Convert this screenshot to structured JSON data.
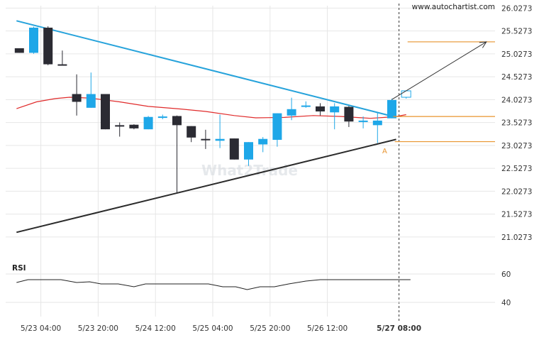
{
  "watermark_site": "www.autochartist.com",
  "watermark_brand": "What2Trade",
  "colors": {
    "background": "#ffffff",
    "grid": "#e6e6e6",
    "bull": "#1ea7e8",
    "bear": "#2b2b33",
    "resistance": "#27a3db",
    "support": "#2b2b2b",
    "ma": "#e02b2b",
    "level": "#e8942e",
    "projection": "#333333",
    "axis_text": "#333333",
    "rsi_line": "#222222"
  },
  "chart_data": {
    "type": "candlestick",
    "price_axis": {
      "ylim": [
        20.53,
        26.08
      ],
      "ticks": [
        "26.0273",
        "25.5273",
        "25.0273",
        "24.5273",
        "24.0273",
        "23.5273",
        "23.0273",
        "22.5273",
        "22.0273",
        "21.5273",
        "21.0273"
      ]
    },
    "time_axis": {
      "ticks": [
        {
          "label": "5/23 04:00",
          "bar": 1.5
        },
        {
          "label": "5/23 20:00",
          "bar": 5.5
        },
        {
          "label": "5/24 12:00",
          "bar": 9.5
        },
        {
          "label": "5/25 04:00",
          "bar": 13.5
        },
        {
          "label": "5/25 20:00",
          "bar": 17.5
        },
        {
          "label": "5/26 12:00",
          "bar": 21.5
        },
        {
          "label": "5/27 08:00",
          "bar": 26.5,
          "highlight": true
        }
      ]
    },
    "candles": [
      {
        "o": 25.15,
        "h": 25.15,
        "l": 25.05,
        "c": 25.05
      },
      {
        "o": 25.05,
        "h": 25.62,
        "l": 25.03,
        "c": 25.6
      },
      {
        "o": 25.6,
        "h": 25.63,
        "l": 24.78,
        "c": 24.8
      },
      {
        "o": 24.8,
        "h": 25.1,
        "l": 24.78,
        "c": 24.79
      },
      {
        "o": 24.15,
        "h": 24.58,
        "l": 23.68,
        "c": 23.98
      },
      {
        "o": 23.85,
        "h": 24.62,
        "l": 23.85,
        "c": 24.15
      },
      {
        "o": 24.15,
        "h": 24.15,
        "l": 23.38,
        "c": 23.38
      },
      {
        "o": 23.47,
        "h": 23.53,
        "l": 23.22,
        "c": 23.45
      },
      {
        "o": 23.48,
        "h": 23.49,
        "l": 23.38,
        "c": 23.4
      },
      {
        "o": 23.38,
        "h": 23.67,
        "l": 23.38,
        "c": 23.65
      },
      {
        "o": 23.65,
        "h": 23.7,
        "l": 23.6,
        "c": 23.66
      },
      {
        "o": 23.67,
        "h": 23.68,
        "l": 21.98,
        "c": 23.47
      },
      {
        "o": 23.45,
        "h": 23.45,
        "l": 23.1,
        "c": 23.2
      },
      {
        "o": 23.17,
        "h": 23.37,
        "l": 22.95,
        "c": 23.15
      },
      {
        "o": 23.13,
        "h": 23.7,
        "l": 22.97,
        "c": 23.17
      },
      {
        "o": 23.18,
        "h": 23.18,
        "l": 22.72,
        "c": 22.72
      },
      {
        "o": 22.72,
        "h": 23.1,
        "l": 22.58,
        "c": 23.1
      },
      {
        "o": 23.05,
        "h": 23.21,
        "l": 22.88,
        "c": 23.17
      },
      {
        "o": 23.15,
        "h": 23.73,
        "l": 23.0,
        "c": 23.73
      },
      {
        "o": 23.68,
        "h": 24.07,
        "l": 23.58,
        "c": 23.82
      },
      {
        "o": 23.88,
        "h": 23.99,
        "l": 23.85,
        "c": 23.9
      },
      {
        "o": 23.88,
        "h": 23.95,
        "l": 23.68,
        "c": 23.77
      },
      {
        "o": 23.75,
        "h": 23.95,
        "l": 23.38,
        "c": 23.88
      },
      {
        "o": 23.87,
        "h": 23.89,
        "l": 23.43,
        "c": 23.55
      },
      {
        "o": 23.57,
        "h": 23.66,
        "l": 23.4,
        "c": 23.57
      },
      {
        "o": 23.47,
        "h": 23.74,
        "l": 23.08,
        "c": 23.57
      },
      {
        "o": 23.62,
        "h": 24.05,
        "l": 23.62,
        "c": 24.02
      },
      {
        "o": 24.08,
        "h": 24.22,
        "l": 24.05,
        "c": 24.22,
        "hollow": true
      }
    ],
    "moving_average": [
      {
        "bar": -0.2,
        "y": 23.83
      },
      {
        "bar": 1.2,
        "y": 23.98
      },
      {
        "bar": 2.5,
        "y": 24.05
      },
      {
        "bar": 3.5,
        "y": 24.08
      },
      {
        "bar": 5.0,
        "y": 24.06
      },
      {
        "bar": 7.0,
        "y": 23.98
      },
      {
        "bar": 9.0,
        "y": 23.88
      },
      {
        "bar": 11.0,
        "y": 23.83
      },
      {
        "bar": 13.0,
        "y": 23.77
      },
      {
        "bar": 15.0,
        "y": 23.68
      },
      {
        "bar": 16.5,
        "y": 23.63
      },
      {
        "bar": 18.5,
        "y": 23.64
      },
      {
        "bar": 20.5,
        "y": 23.68
      },
      {
        "bar": 22.5,
        "y": 23.66
      },
      {
        "bar": 24.5,
        "y": 23.62
      },
      {
        "bar": 25.5,
        "y": 23.64
      },
      {
        "bar": 26.3,
        "y": 23.66
      },
      {
        "bar": 27.0,
        "y": 23.7
      }
    ],
    "resistance_line": {
      "from": {
        "bar": -0.2,
        "y": 25.75
      },
      "to": {
        "bar": 26.1,
        "y": 23.66
      }
    },
    "support_line": {
      "from": {
        "bar": -0.2,
        "y": 21.13
      },
      "to": {
        "bar": 26.3,
        "y": 23.16
      }
    },
    "horizontal_levels": [
      {
        "y": 23.66,
        "from_bar": 26.1,
        "to_bar": 37
      },
      {
        "y": 23.11,
        "from_bar": 26.2,
        "to_bar": 37
      },
      {
        "y": 25.29,
        "from_bar": 27.1,
        "to_bar": 37
      }
    ],
    "projection": {
      "from": {
        "bar": 26.0,
        "y": 24.03
      },
      "to": {
        "bar": 32.6,
        "y": 25.29
      }
    },
    "point_label": {
      "text": "A",
      "bar": 25.5,
      "y": 22.92
    },
    "rsi": {
      "label": "RSI",
      "ylim": [
        30,
        70
      ],
      "ticks": [
        "60",
        "40"
      ],
      "points": [
        {
          "bar": -0.2,
          "y": 54
        },
        {
          "bar": 0.6,
          "y": 56
        },
        {
          "bar": 2.9,
          "y": 56
        },
        {
          "bar": 4.0,
          "y": 54
        },
        {
          "bar": 4.9,
          "y": 54.5
        },
        {
          "bar": 5.7,
          "y": 53
        },
        {
          "bar": 6.9,
          "y": 53
        },
        {
          "bar": 8.0,
          "y": 51
        },
        {
          "bar": 8.8,
          "y": 53
        },
        {
          "bar": 13.2,
          "y": 53
        },
        {
          "bar": 14.2,
          "y": 51
        },
        {
          "bar": 15.1,
          "y": 51
        },
        {
          "bar": 15.9,
          "y": 49
        },
        {
          "bar": 16.8,
          "y": 51
        },
        {
          "bar": 17.8,
          "y": 51
        },
        {
          "bar": 18.8,
          "y": 53
        },
        {
          "bar": 20.0,
          "y": 55
        },
        {
          "bar": 21.0,
          "y": 56
        },
        {
          "bar": 27.3,
          "y": 56
        }
      ]
    }
  }
}
